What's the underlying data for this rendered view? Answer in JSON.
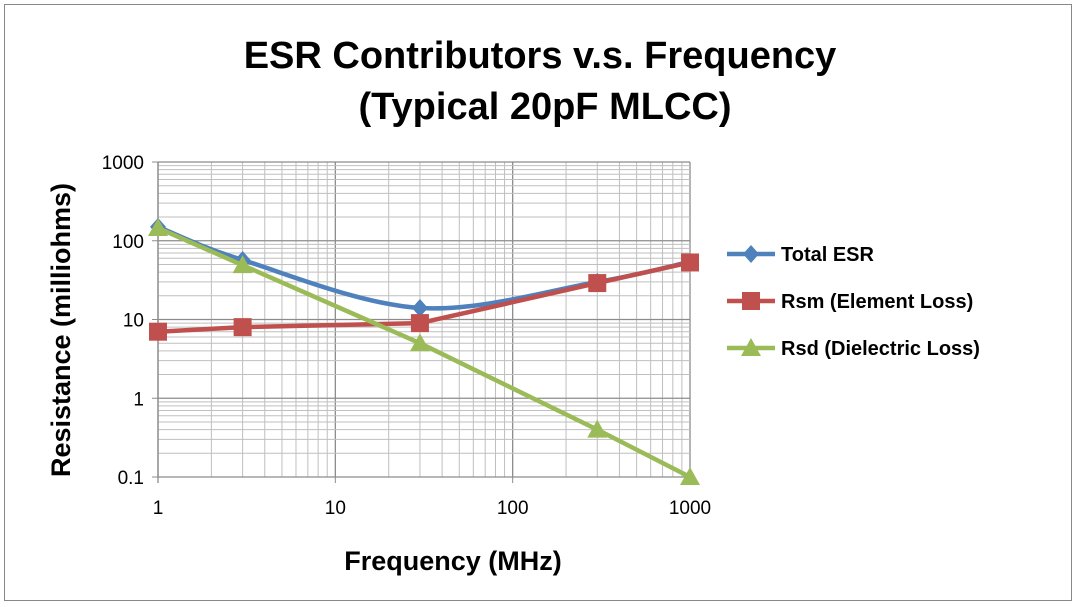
{
  "chart_data": {
    "type": "line",
    "title": [
      "ESR Contributors v.s. Frequency",
      "(Typical 20pF MLCC)"
    ],
    "xlabel": "Frequency (MHz)",
    "ylabel": "Resistance (milliohms)",
    "xscale": "log",
    "yscale": "log",
    "xlim": [
      1,
      1000
    ],
    "ylim": [
      0.1,
      1000
    ],
    "xticks": [
      "1",
      "10",
      "100",
      "1000"
    ],
    "yticks": [
      "0.1",
      "1",
      "10",
      "100",
      "1000"
    ],
    "grid": true,
    "legend_position": "right",
    "x": [
      1,
      3,
      30,
      300,
      1000
    ],
    "series": [
      {
        "name": "Total ESR",
        "values": [
          150,
          57,
          14,
          30,
          54
        ],
        "color": "#4f81bd",
        "marker": "diamond",
        "smooth": true
      },
      {
        "name": "Rsm (Element Loss)",
        "values": [
          7,
          8,
          9,
          29,
          53
        ],
        "color": "#c0504d",
        "marker": "square",
        "smooth": false
      },
      {
        "name": "Rsd (Dielectric Loss)",
        "values": [
          145,
          49,
          5,
          0.4,
          0.1
        ],
        "color": "#9bbb59",
        "marker": "triangle",
        "smooth": false
      }
    ]
  }
}
